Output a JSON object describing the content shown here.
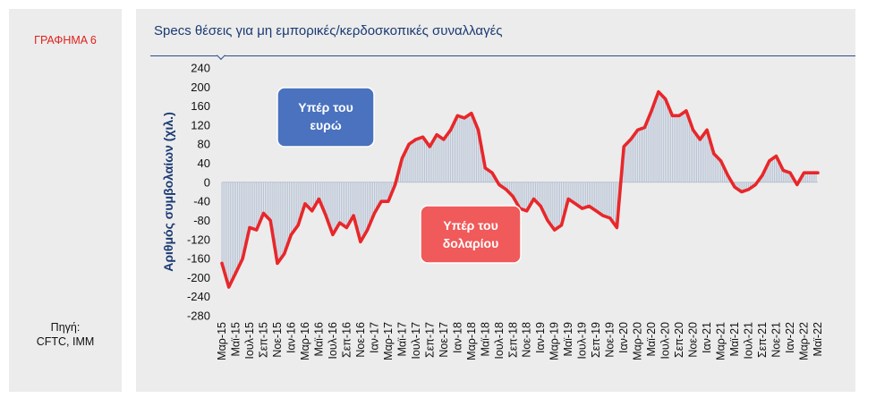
{
  "figure_label": "ΓΡΑΦΗΜΑ 6",
  "source_line1": "Πηγή:",
  "source_line2": "CFTC, IMM",
  "chart_data": {
    "type": "area",
    "title": "Specs θέσεις για μη εμπορικές/κερδοσκοπικές συναλλαγές",
    "ylabel": "Αριθμός συμβολαίων (χιλ.)",
    "ylim": [
      -280,
      240
    ],
    "yticks": [
      240,
      200,
      160,
      120,
      80,
      40,
      0,
      -40,
      -80,
      -120,
      -160,
      -200,
      -240,
      -280
    ],
    "x_labels": [
      "Μαρ-15",
      "Μαϊ-15",
      "Ιουλ-15",
      "Σεπ-15",
      "Νοε-15",
      "Ιαν-16",
      "Μαρ-16",
      "Μαϊ-16",
      "Ιουλ-16",
      "Σεπ-16",
      "Νοε-16",
      "Ιαν-17",
      "Μαρ-17",
      "Μαϊ-17",
      "Ιουλ-17",
      "Σεπ-17",
      "Νοε-17",
      "Ιαν-18",
      "Μαρ-18",
      "Μαϊ-18",
      "Ιουλ-18",
      "Σεπ-18",
      "Νοε-18",
      "Ιαν-19",
      "Μαρ-19",
      "Μαϊ-19",
      "Ιουλ-19",
      "Σεπ-19",
      "Νοε-19",
      "Ιαν-20",
      "Μαρ-20",
      "Μαϊ-20",
      "Ιουλ-20",
      "Σεπ-20",
      "Νοε-20",
      "Ιαν-21",
      "Μαρ-21",
      "Μαϊ-21",
      "Ιουλ-21",
      "Σεπ-21",
      "Νοε-21",
      "Ιαν-22",
      "Μαρ-22",
      "Μαϊ-22"
    ],
    "series_color": "#e8272a",
    "fill_color": "#b7c3d6",
    "series": [
      {
        "months": [
          "Μαρ-15",
          "Απρ-15",
          "Μαϊ-15",
          "Ιουν-15",
          "Ιουλ-15",
          "Αυγ-15",
          "Σεπ-15",
          "Οκτ-15",
          "Νοε-15",
          "Δεκ-15",
          "Ιαν-16",
          "Φεβ-16",
          "Μαρ-16",
          "Απρ-16",
          "Μαϊ-16",
          "Ιουν-16",
          "Ιουλ-16",
          "Αυγ-16",
          "Σεπ-16",
          "Οκτ-16",
          "Νοε-16",
          "Δεκ-16",
          "Ιαν-17",
          "Φεβ-17",
          "Μαρ-17",
          "Απρ-17",
          "Μαϊ-17",
          "Ιουν-17",
          "Ιουλ-17",
          "Αυγ-17",
          "Σεπ-17",
          "Οκτ-17",
          "Νοε-17",
          "Δεκ-17",
          "Ιαν-18",
          "Φεβ-18",
          "Μαρ-18",
          "Απρ-18",
          "Μαϊ-18",
          "Ιουν-18",
          "Ιουλ-18",
          "Αυγ-18",
          "Σεπ-18",
          "Οκτ-18",
          "Νοε-18",
          "Δεκ-18",
          "Ιαν-19",
          "Φεβ-19",
          "Μαρ-19",
          "Απρ-19",
          "Μαϊ-19",
          "Ιουν-19",
          "Ιουλ-19",
          "Αυγ-19",
          "Σεπ-19",
          "Οκτ-19",
          "Νοε-19",
          "Δεκ-19",
          "Ιαν-20",
          "Φεβ-20",
          "Μαρ-20",
          "Απρ-20",
          "Μαϊ-20",
          "Ιουν-20",
          "Ιουλ-20",
          "Αυγ-20",
          "Σεπ-20",
          "Οκτ-20",
          "Νοε-20",
          "Δεκ-20",
          "Ιαν-21",
          "Φεβ-21",
          "Μαρ-21",
          "Απρ-21",
          "Μαϊ-21",
          "Ιουν-21",
          "Ιουλ-21",
          "Αυγ-21",
          "Σεπ-21",
          "Οκτ-21",
          "Νοε-21",
          "Δεκ-21",
          "Ιαν-22",
          "Φεβ-22",
          "Μαρ-22",
          "Απρ-22",
          "Μαϊ-22"
        ],
        "values": [
          -170,
          -220,
          -190,
          -160,
          -95,
          -100,
          -65,
          -80,
          -170,
          -150,
          -110,
          -90,
          -45,
          -60,
          -35,
          -70,
          -110,
          -85,
          -95,
          -70,
          -125,
          -100,
          -65,
          -40,
          -40,
          -5,
          50,
          80,
          90,
          95,
          75,
          100,
          90,
          110,
          140,
          135,
          145,
          110,
          30,
          20,
          -5,
          -15,
          -30,
          -55,
          -60,
          -35,
          -50,
          -80,
          -100,
          -90,
          -35,
          -45,
          -55,
          -50,
          -60,
          -70,
          -75,
          -95,
          75,
          90,
          110,
          115,
          150,
          190,
          175,
          140,
          140,
          150,
          110,
          90,
          110,
          60,
          45,
          15,
          -10,
          -20,
          -15,
          -5,
          15,
          45,
          55,
          25,
          20,
          -5,
          20,
          20,
          20
        ]
      }
    ],
    "annotations": [
      {
        "text_line1": "Υπέρ του",
        "text_line2": "ευρώ",
        "color": "#4a72bf"
      },
      {
        "text_line1": "Υπέρ του",
        "text_line2": "δολαρίου",
        "color": "#f05a5a"
      }
    ]
  }
}
